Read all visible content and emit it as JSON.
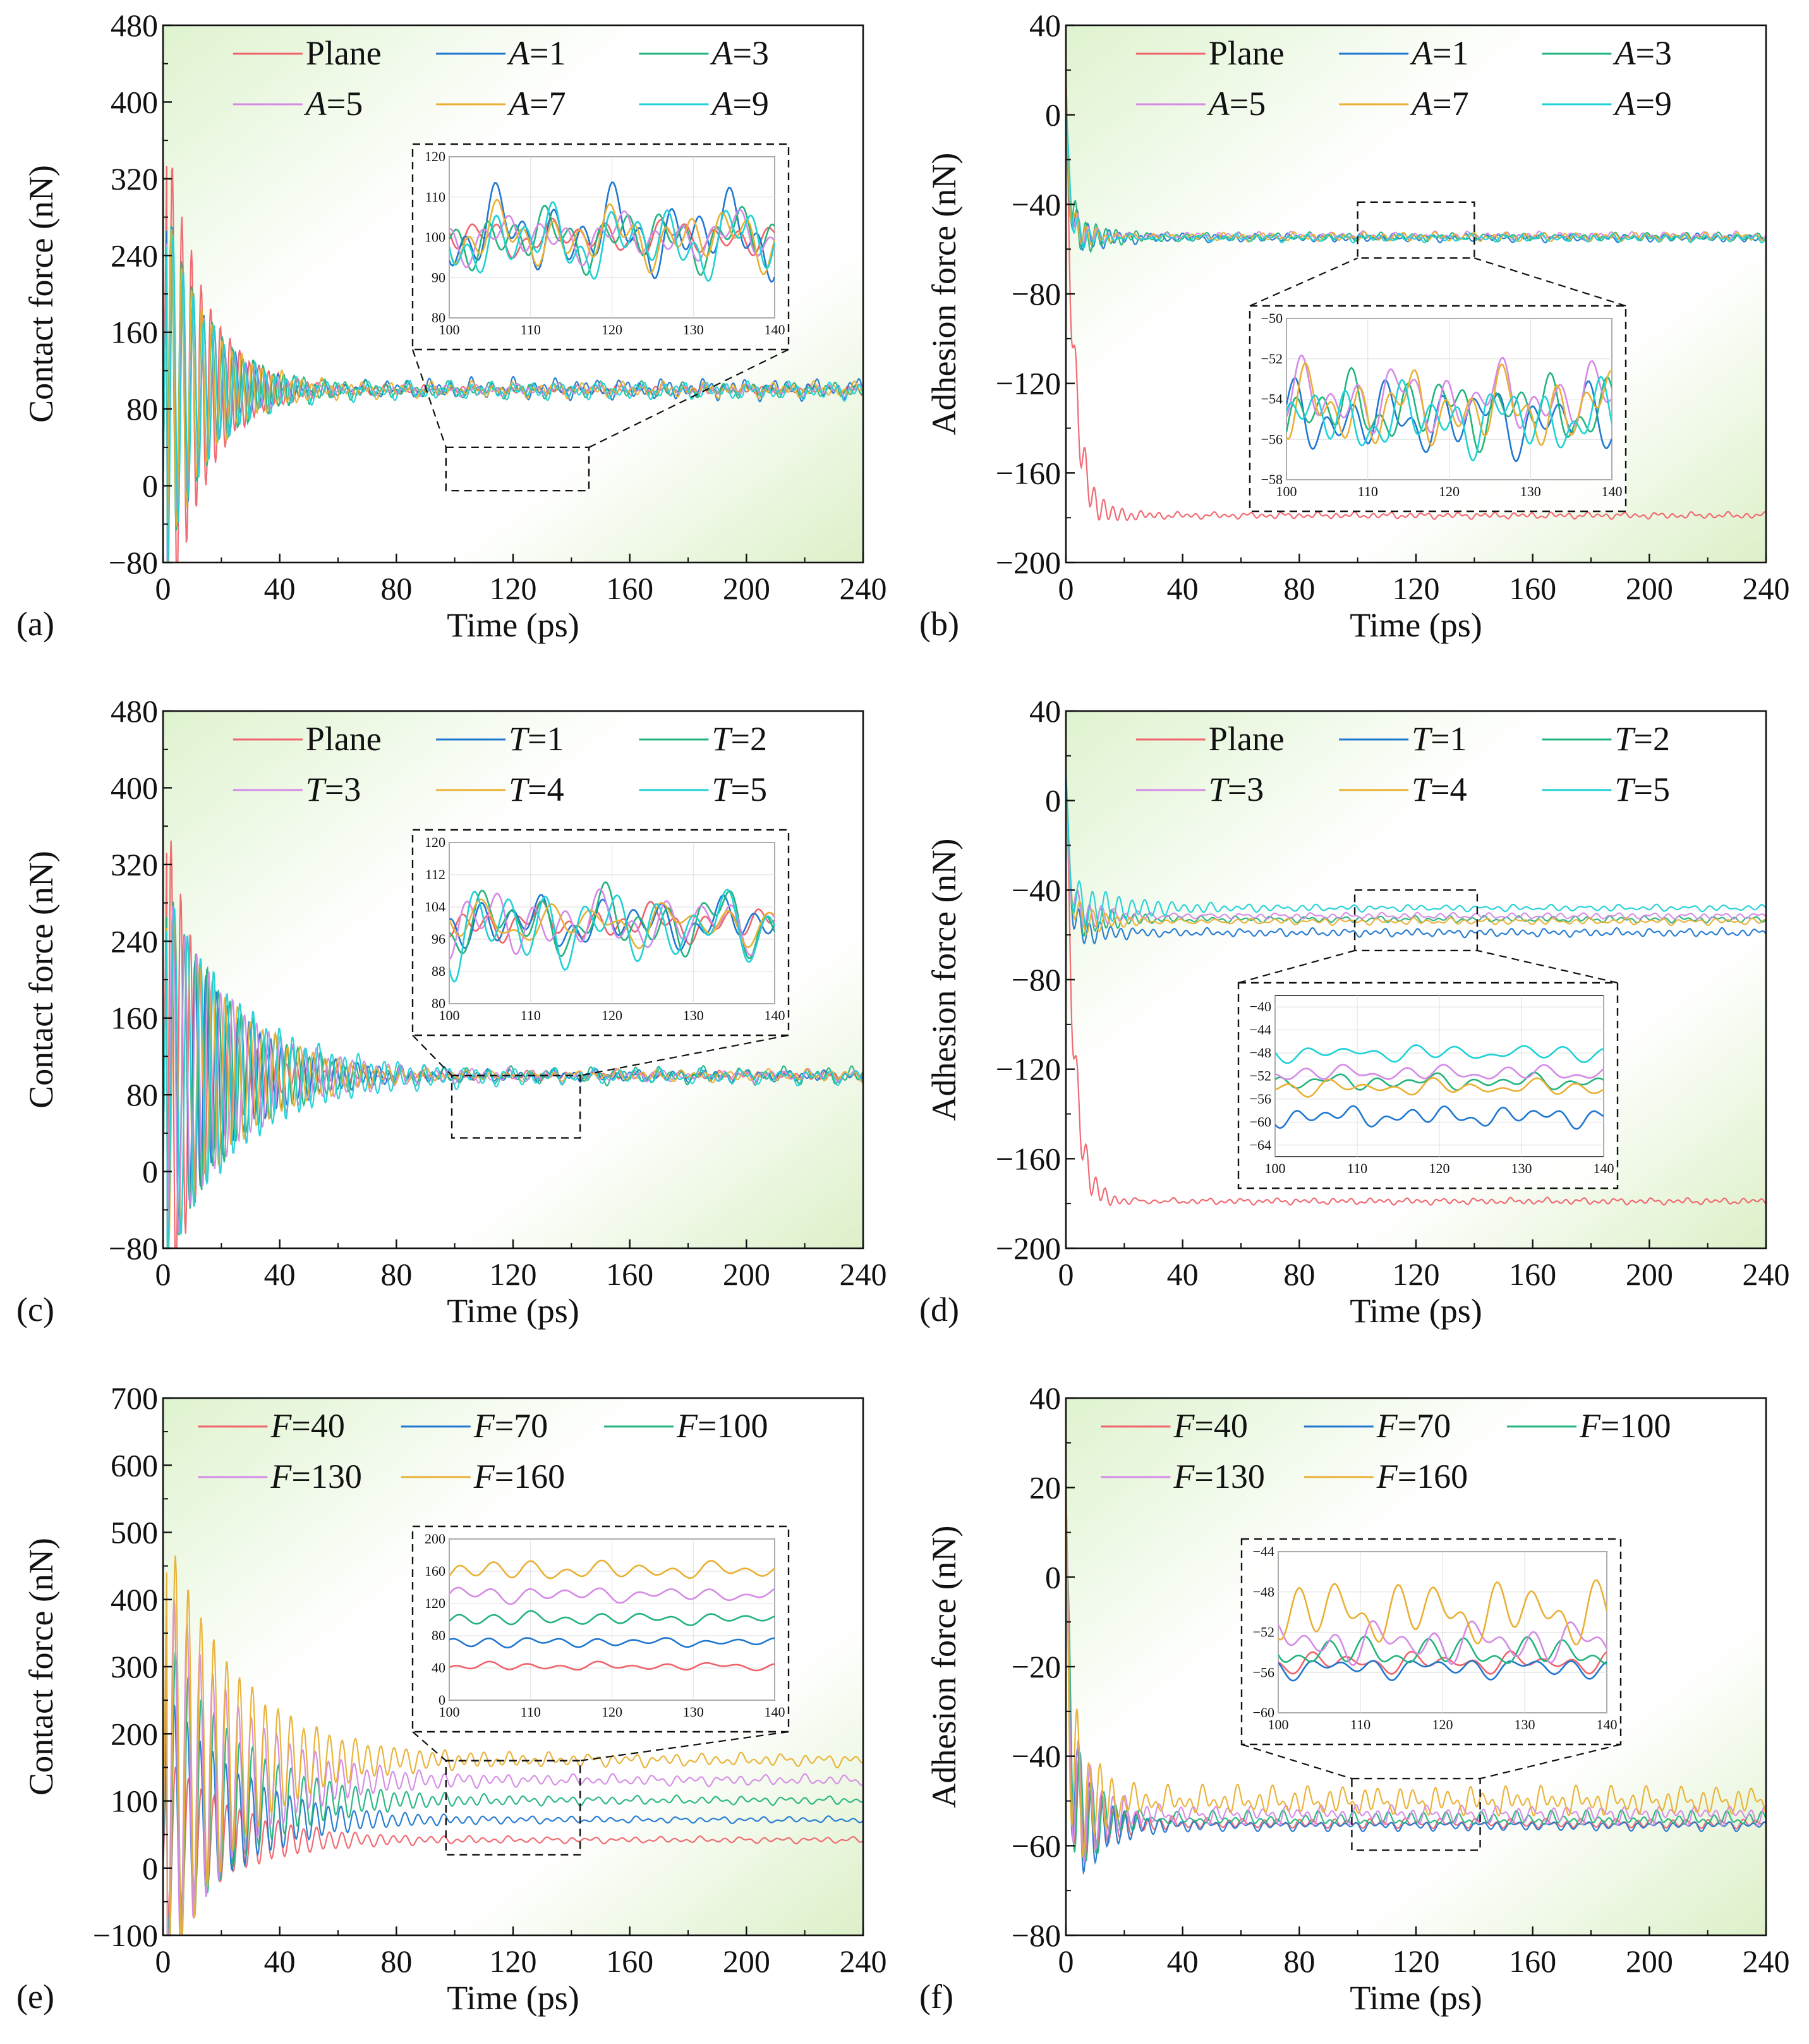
{
  "figure": {
    "description_free": true
  },
  "chart_data": [
    {
      "type": "line",
      "label": "(a)",
      "xlabel": "Time (ps)",
      "ylabel": "Contact force (nN)",
      "xlim": [
        0,
        240
      ],
      "ylim": [
        -80,
        480
      ],
      "xticks": [
        "0",
        "40",
        "80",
        "120",
        "160",
        "200",
        "240"
      ],
      "yticks": [
        "−80",
        "0",
        "80",
        "160",
        "240",
        "320",
        "400",
        "480"
      ],
      "ytick_values": [
        -80,
        0,
        80,
        160,
        240,
        320,
        400,
        480
      ],
      "legend_cols": 3,
      "legend_top": 0,
      "legend_x_start": 0.1,
      "series": [
        {
          "name": "Plane",
          "var": "",
          "val": "Plane",
          "color": "#f0636b",
          "kind": "contact",
          "eq": 100,
          "amp": 300,
          "tau": 13,
          "period": 3.3,
          "noise": 3
        },
        {
          "name": "A=1",
          "var": "A",
          "val": "=1",
          "color": "#1f77d0",
          "kind": "contact",
          "eq": 101,
          "amp": 210,
          "tau": 15,
          "period": 3.6,
          "noise": 7
        },
        {
          "name": "A=3",
          "var": "A",
          "val": "=3",
          "color": "#22b47c",
          "kind": "contact",
          "eq": 100,
          "amp": 200,
          "tau": 15,
          "period": 3.5,
          "noise": 5
        },
        {
          "name": "A=5",
          "var": "A",
          "val": "=5",
          "color": "#d58ae6",
          "kind": "contact",
          "eq": 100,
          "amp": 200,
          "tau": 15,
          "period": 3.55,
          "noise": 4
        },
        {
          "name": "A=7",
          "var": "A",
          "val": "=7",
          "color": "#e9b033",
          "kind": "contact",
          "eq": 100,
          "amp": 200,
          "tau": 15,
          "period": 3.45,
          "noise": 5
        },
        {
          "name": "A=9",
          "var": "A",
          "val": "=9",
          "color": "#1fd1d6",
          "kind": "contact",
          "eq": 99,
          "amp": 200,
          "tau": 15,
          "period": 3.5,
          "noise": 6
        }
      ],
      "zoom": {
        "x": [
          97,
          146
        ],
        "y": [
          -5,
          40
        ]
      },
      "inset": {
        "xlim": [
          100,
          140
        ],
        "ylim": [
          80,
          120
        ],
        "xticks": [
          "100",
          "110",
          "120",
          "130",
          "140"
        ],
        "yticks": [
          "80",
          "90",
          "100",
          "110",
          "120"
        ],
        "ytick_values": [
          80,
          90,
          100,
          110,
          120
        ]
      }
    },
    {
      "type": "line",
      "label": "(b)",
      "xlabel": "Time (ps)",
      "ylabel": "Adhesion force (nN)",
      "xlim": [
        0,
        240
      ],
      "ylim": [
        -200,
        40
      ],
      "xticks": [
        "0",
        "40",
        "80",
        "120",
        "160",
        "200",
        "240"
      ],
      "yticks": [
        "−200",
        "−160",
        "−120",
        "−80",
        "−40",
        "0",
        "40"
      ],
      "ytick_values": [
        -200,
        -160,
        -120,
        -80,
        -40,
        0,
        40
      ],
      "legend_cols": 3,
      "legend_top": 0,
      "legend_x_start": 0.1,
      "series": [
        {
          "name": "Plane",
          "var": "",
          "val": "Plane",
          "color": "#f0636b",
          "kind": "adh",
          "start": 0,
          "eq": -179,
          "amp": 20,
          "tau": 8,
          "period": 3.2,
          "noise": 0.8,
          "drop": 3
        },
        {
          "name": "A=1",
          "var": "A",
          "val": "=1",
          "color": "#1f77d0",
          "kind": "adh",
          "start": 0,
          "eq": -55,
          "amp": 10,
          "tau": 10,
          "period": 3.6,
          "noise": 1.0,
          "drop": 1.5
        },
        {
          "name": "A=3",
          "var": "A",
          "val": "=3",
          "color": "#22b47c",
          "kind": "adh",
          "start": 0,
          "eq": -54.5,
          "amp": 12,
          "tau": 10,
          "period": 3.5,
          "noise": 1.0,
          "drop": 1.5
        },
        {
          "name": "A=5",
          "var": "A",
          "val": "=5",
          "color": "#d58ae6",
          "kind": "adh",
          "start": 0,
          "eq": -54,
          "amp": 10,
          "tau": 10,
          "period": 3.55,
          "noise": 1.0,
          "drop": 1.5
        },
        {
          "name": "A=7",
          "var": "A",
          "val": "=7",
          "color": "#e9b033",
          "kind": "adh",
          "start": 0,
          "eq": -54.5,
          "amp": 10,
          "tau": 10,
          "period": 3.45,
          "noise": 1.1,
          "drop": 1.5
        },
        {
          "name": "A=9",
          "var": "A",
          "val": "=9",
          "color": "#1fd1d6",
          "kind": "adh",
          "start": 0,
          "eq": -55,
          "amp": 10,
          "tau": 10,
          "period": 3.5,
          "noise": 1.0,
          "drop": 1.5
        }
      ],
      "zoom": {
        "x": [
          100,
          140
        ],
        "y": [
          -64,
          -39
        ]
      },
      "inset": {
        "xlim": [
          100,
          140
        ],
        "ylim": [
          -58,
          -50
        ],
        "xticks": [
          "100",
          "110",
          "120",
          "130",
          "140"
        ],
        "yticks": [
          "−58",
          "−56",
          "−54",
          "−52",
          "−50"
        ],
        "ytick_values": [
          -58,
          -56,
          -54,
          -52,
          -50
        ]
      }
    },
    {
      "type": "line",
      "label": "(c)",
      "xlabel": "Time (ps)",
      "ylabel": "Contact force (nN)",
      "xlim": [
        0,
        240
      ],
      "ylim": [
        -80,
        480
      ],
      "xticks": [
        "0",
        "40",
        "80",
        "120",
        "160",
        "200",
        "240"
      ],
      "yticks": [
        "−80",
        "0",
        "80",
        "160",
        "240",
        "320",
        "400",
        "480"
      ],
      "ytick_values": [
        -80,
        0,
        80,
        160,
        240,
        320,
        400,
        480
      ],
      "legend_cols": 3,
      "legend_top": 0,
      "legend_x_start": 0.1,
      "series": [
        {
          "name": "Plane",
          "var": "",
          "val": "Plane",
          "color": "#f0636b",
          "kind": "contact",
          "eq": 100,
          "amp": 300,
          "tau": 13,
          "period": 3.3,
          "noise": 3
        },
        {
          "name": "T=1",
          "var": "T",
          "val": "=1",
          "color": "#1f77d0",
          "kind": "contact",
          "eq": 100,
          "amp": 200,
          "tau": 22,
          "period": 3.7,
          "noise": 4
        },
        {
          "name": "T=2",
          "var": "T",
          "val": "=2",
          "color": "#22b47c",
          "kind": "contact",
          "eq": 100,
          "amp": 210,
          "tau": 24,
          "period": 3.9,
          "noise": 6
        },
        {
          "name": "T=3",
          "var": "T",
          "val": "=3",
          "color": "#d58ae6",
          "kind": "contact",
          "eq": 100,
          "amp": 200,
          "tau": 24,
          "period": 4.1,
          "noise": 4
        },
        {
          "name": "T=4",
          "var": "T",
          "val": "=4",
          "color": "#e9b033",
          "kind": "contact",
          "eq": 100,
          "amp": 200,
          "tau": 25,
          "period": 4.3,
          "noise": 4
        },
        {
          "name": "T=5",
          "var": "T",
          "val": "=5",
          "color": "#1fd1d6",
          "kind": "contact",
          "eq": 99,
          "amp": 200,
          "tau": 26,
          "period": 4.5,
          "noise": 5
        }
      ],
      "zoom": {
        "x": [
          99,
          143
        ],
        "y": [
          35,
          100
        ]
      },
      "inset": {
        "xlim": [
          100,
          140
        ],
        "ylim": [
          80,
          120
        ],
        "xticks": [
          "100",
          "110",
          "120",
          "130",
          "140"
        ],
        "yticks": [
          "80",
          "88",
          "96",
          "104",
          "112",
          "120"
        ],
        "ytick_values": [
          80,
          88,
          96,
          104,
          112,
          120
        ]
      }
    },
    {
      "type": "line",
      "label": "(d)",
      "xlabel": "Time (ps)",
      "ylabel": "Adhesion force (nN)",
      "xlim": [
        0,
        240
      ],
      "ylim": [
        -200,
        40
      ],
      "xticks": [
        "0",
        "40",
        "80",
        "120",
        "160",
        "200",
        "240"
      ],
      "yticks": [
        "−200",
        "−160",
        "−120",
        "−80",
        "−40",
        "0",
        "40"
      ],
      "ytick_values": [
        -200,
        -160,
        -120,
        -80,
        -40,
        0,
        40
      ],
      "legend_cols": 3,
      "legend_top": 0,
      "legend_x_start": 0.1,
      "series": [
        {
          "name": "Plane",
          "var": "",
          "val": "Plane",
          "color": "#f0636b",
          "kind": "adh",
          "start": 0,
          "eq": -179,
          "amp": 20,
          "tau": 8,
          "period": 3.2,
          "noise": 0.8,
          "drop": 3
        },
        {
          "name": "T=1",
          "var": "T",
          "val": "=1",
          "color": "#1f77d0",
          "kind": "adh",
          "start": 0,
          "eq": -59,
          "amp": 10,
          "tau": 12,
          "period": 3.6,
          "noise": 1.0,
          "drop": 1.5
        },
        {
          "name": "T=2",
          "var": "T",
          "val": "=2",
          "color": "#22b47c",
          "kind": "adh",
          "start": 0,
          "eq": -53,
          "amp": 12,
          "tau": 14,
          "period": 3.9,
          "noise": 0.8,
          "drop": 1.5
        },
        {
          "name": "T=3",
          "var": "T",
          "val": "=3",
          "color": "#d58ae6",
          "kind": "adh",
          "start": 0,
          "eq": -51.5,
          "amp": 10,
          "tau": 15,
          "period": 4.1,
          "noise": 0.8,
          "drop": 1.5
        },
        {
          "name": "T=4",
          "var": "T",
          "val": "=4",
          "color": "#e9b033",
          "kind": "adh",
          "start": 0,
          "eq": -54,
          "amp": 10,
          "tau": 15,
          "period": 4.3,
          "noise": 0.8,
          "drop": 1.5
        },
        {
          "name": "T=5",
          "var": "T",
          "val": "=5",
          "color": "#1fd1d6",
          "kind": "adh",
          "start": 0,
          "eq": -48,
          "amp": 12,
          "tau": 18,
          "period": 4.5,
          "noise": 0.8,
          "drop": 1.5
        }
      ],
      "zoom": {
        "x": [
          99,
          141
        ],
        "y": [
          -67,
          -40
        ]
      },
      "inset": {
        "xlim": [
          100,
          140
        ],
        "ylim": [
          -66,
          -38
        ],
        "xticks": [
          "100",
          "110",
          "120",
          "130",
          "140"
        ],
        "yticks": [
          "−64",
          "−60",
          "−56",
          "−52",
          "−48",
          "−44",
          "−40"
        ],
        "ytick_values": [
          -64,
          -60,
          -56,
          -52,
          -48,
          -44,
          -40
        ]
      }
    },
    {
      "type": "line",
      "label": "(e)",
      "xlabel": "Time (ps)",
      "ylabel": "Contact force (nN)",
      "xlim": [
        0,
        240
      ],
      "ylim": [
        -100,
        700
      ],
      "xticks": [
        "0",
        "40",
        "80",
        "120",
        "160",
        "200",
        "240"
      ],
      "yticks": [
        "−100",
        "0",
        "100",
        "200",
        "300",
        "400",
        "500",
        "600",
        "700"
      ],
      "ytick_values": [
        -100,
        0,
        100,
        200,
        300,
        400,
        500,
        600,
        700
      ],
      "legend_cols": 3,
      "legend_top": 0,
      "legend_x_start": 0.05,
      "series": [
        {
          "name": "F=40",
          "var": "F",
          "val": "=40",
          "color": "#f0636b",
          "kind": "contact",
          "eq": 42,
          "amp": 130,
          "tau": 24,
          "period": 4.4,
          "noise": 3
        },
        {
          "name": "F=70",
          "var": "F",
          "val": "=70",
          "color": "#1f77d0",
          "kind": "contact",
          "eq": 72,
          "amp": 200,
          "tau": 24,
          "period": 4.4,
          "noise": 3
        },
        {
          "name": "F=100",
          "var": "F",
          "val": "=100",
          "color": "#22b47c",
          "kind": "contact",
          "eq": 101,
          "amp": 260,
          "tau": 24,
          "period": 4.4,
          "noise": 4
        },
        {
          "name": "F=130",
          "var": "F",
          "val": "=130",
          "color": "#d58ae6",
          "kind": "contact",
          "eq": 131,
          "amp": 320,
          "tau": 24,
          "period": 4.4,
          "noise": 5
        },
        {
          "name": "F=160",
          "var": "F",
          "val": "=160",
          "color": "#e9b033",
          "kind": "contact",
          "eq": 161,
          "amp": 360,
          "tau": 24,
          "period": 4.4,
          "noise": 6
        }
      ],
      "zoom": {
        "x": [
          97,
          143
        ],
        "y": [
          20,
          160
        ]
      },
      "inset": {
        "xlim": [
          100,
          140
        ],
        "ylim": [
          0,
          200
        ],
        "xticks": [
          "100",
          "110",
          "120",
          "130",
          "140"
        ],
        "yticks": [
          "0",
          "40",
          "80",
          "120",
          "160",
          "200"
        ],
        "ytick_values": [
          0,
          40,
          80,
          120,
          160,
          200
        ]
      }
    },
    {
      "type": "line",
      "label": "(f)",
      "xlabel": "Time (ps)",
      "ylabel": "Adhesion force (nN)",
      "xlim": [
        0,
        240
      ],
      "ylim": [
        -80,
        40
      ],
      "xticks": [
        "0",
        "40",
        "80",
        "120",
        "160",
        "200",
        "240"
      ],
      "yticks": [
        "−80",
        "−60",
        "−40",
        "−20",
        "0",
        "20",
        "40"
      ],
      "ytick_values": [
        -80,
        -60,
        -40,
        -20,
        0,
        20,
        40
      ],
      "legend_cols": 3,
      "legend_top": 0,
      "legend_x_start": 0.05,
      "series": [
        {
          "name": "F=40",
          "var": "F",
          "val": "=40",
          "color": "#f0636b",
          "kind": "adh",
          "start": 0,
          "eq": -55,
          "amp": 18,
          "tau": 10,
          "period": 4.0,
          "noise": 0.6,
          "drop": 1.5
        },
        {
          "name": "F=70",
          "var": "F",
          "val": "=70",
          "color": "#1f77d0",
          "kind": "adh",
          "start": 0,
          "eq": -55.5,
          "amp": 20,
          "tau": 10,
          "period": 4.0,
          "noise": 0.6,
          "drop": 1.5
        },
        {
          "name": "F=100",
          "var": "F",
          "val": "=100",
          "color": "#22b47c",
          "kind": "adh",
          "start": 0,
          "eq": -54,
          "amp": 22,
          "tau": 10,
          "period": 4.0,
          "noise": 0.9,
          "drop": 1.5
        },
        {
          "name": "F=130",
          "var": "F",
          "val": "=130",
          "color": "#d58ae6",
          "kind": "adh",
          "start": 0,
          "eq": -53,
          "amp": 22,
          "tau": 10,
          "period": 4.0,
          "noise": 1.2,
          "drop": 1.5
        },
        {
          "name": "F=160",
          "var": "F",
          "val": "=160",
          "color": "#e9b033",
          "kind": "adh",
          "start": 0,
          "eq": -50,
          "amp": 24,
          "tau": 10,
          "period": 4.0,
          "noise": 1.8,
          "drop": 1.5
        }
      ],
      "zoom": {
        "x": [
          98,
          142
        ],
        "y": [
          -61,
          -45
        ]
      },
      "inset": {
        "xlim": [
          100,
          140
        ],
        "ylim": [
          -60,
          -44
        ],
        "xticks": [
          "100",
          "110",
          "120",
          "130",
          "140"
        ],
        "yticks": [
          "−60",
          "−56",
          "−52",
          "−48",
          "−44"
        ],
        "ytick_values": [
          -60,
          -56,
          -52,
          -48,
          -44
        ]
      }
    }
  ]
}
